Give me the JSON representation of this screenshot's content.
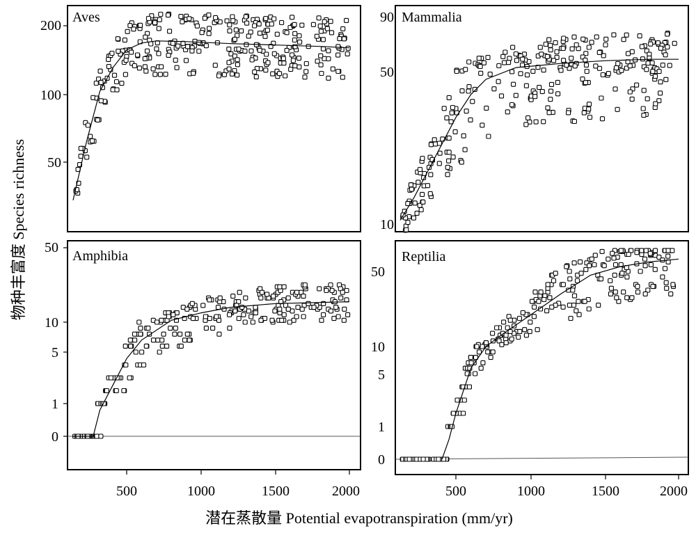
{
  "xlabel": "潜在蒸散量 Potential evapotranspiration (mm/yr)",
  "ylabel": "物种丰富度 Species richness",
  "chart_data": [
    {
      "type": "scatter",
      "title": "Aves",
      "x_ticks": [
        "500",
        "1000",
        "1500",
        "2000"
      ],
      "y_ticks": [
        "50",
        "100",
        "200"
      ],
      "y_scale": "log-like",
      "xlim": [
        100,
        2060
      ],
      "points_summary": "rapid rise from ~25 species at 100 mm/yr to ~180 near 650 mm/yr, then plateau ~160–210 up to ~2000 mm/yr",
      "fit_curve": [
        [
          100,
          30
        ],
        [
          200,
          65
        ],
        [
          300,
          105
        ],
        [
          400,
          140
        ],
        [
          500,
          165
        ],
        [
          600,
          175
        ],
        [
          700,
          178
        ],
        [
          900,
          177
        ],
        [
          1200,
          174
        ],
        [
          1500,
          172
        ],
        [
          1800,
          170
        ],
        [
          2000,
          168
        ]
      ]
    },
    {
      "type": "scatter",
      "title": "Mammalia",
      "x_ticks": [],
      "y_ticks": [
        "10",
        "50",
        "90"
      ],
      "y_scale": "log-like",
      "xlim": [
        100,
        2060
      ],
      "points_summary": "rise from ~10 species at 100 mm/yr to ~50 near 900 mm/yr, then scattered 20–95",
      "fit_curve": [
        [
          100,
          11
        ],
        [
          200,
          17
        ],
        [
          300,
          24
        ],
        [
          400,
          31
        ],
        [
          500,
          38
        ],
        [
          600,
          44
        ],
        [
          700,
          48
        ],
        [
          900,
          53
        ],
        [
          1200,
          56
        ],
        [
          1500,
          58
        ],
        [
          1800,
          59
        ],
        [
          2000,
          59
        ]
      ]
    },
    {
      "type": "scatter",
      "title": "Amphibia",
      "x_ticks": [
        "500",
        "1000",
        "1500",
        "2000"
      ],
      "y_ticks": [
        "0",
        "1",
        "5",
        "10",
        "50"
      ],
      "y_scale": "log-like",
      "xlim": [
        100,
        2060
      ],
      "points_summary": "zeros below ~250 mm/yr, steep rise to ~10 near 600 mm/yr, plateau ~10–50 at higher PET",
      "fit_curve": [
        [
          100,
          0
        ],
        [
          150,
          0
        ],
        [
          250,
          0
        ],
        [
          300,
          0.8
        ],
        [
          400,
          2.5
        ],
        [
          500,
          4.5
        ],
        [
          600,
          7
        ],
        [
          800,
          11
        ],
        [
          1000,
          15
        ],
        [
          1200,
          18
        ],
        [
          1500,
          20
        ],
        [
          2000,
          21
        ]
      ]
    },
    {
      "type": "scatter",
      "title": "Reptilia",
      "x_ticks": [
        "500",
        "1000",
        "1500",
        "2000"
      ],
      "y_ticks": [
        "0",
        "1",
        "5",
        "10",
        "50"
      ],
      "y_scale": "log-like",
      "xlim": [
        100,
        2060
      ],
      "points_summary": "zeros below ~450 mm/yr, steep rise above 500 mm/yr to ~50–70 near 1500–2000 mm/yr",
      "fit_curve": [
        [
          400,
          0
        ],
        [
          450,
          0.6
        ],
        [
          500,
          2
        ],
        [
          600,
          6
        ],
        [
          700,
          10
        ],
        [
          800,
          16
        ],
        [
          1000,
          27
        ],
        [
          1200,
          38
        ],
        [
          1400,
          48
        ],
        [
          1600,
          55
        ],
        [
          1800,
          60
        ],
        [
          2000,
          63
        ]
      ]
    }
  ]
}
